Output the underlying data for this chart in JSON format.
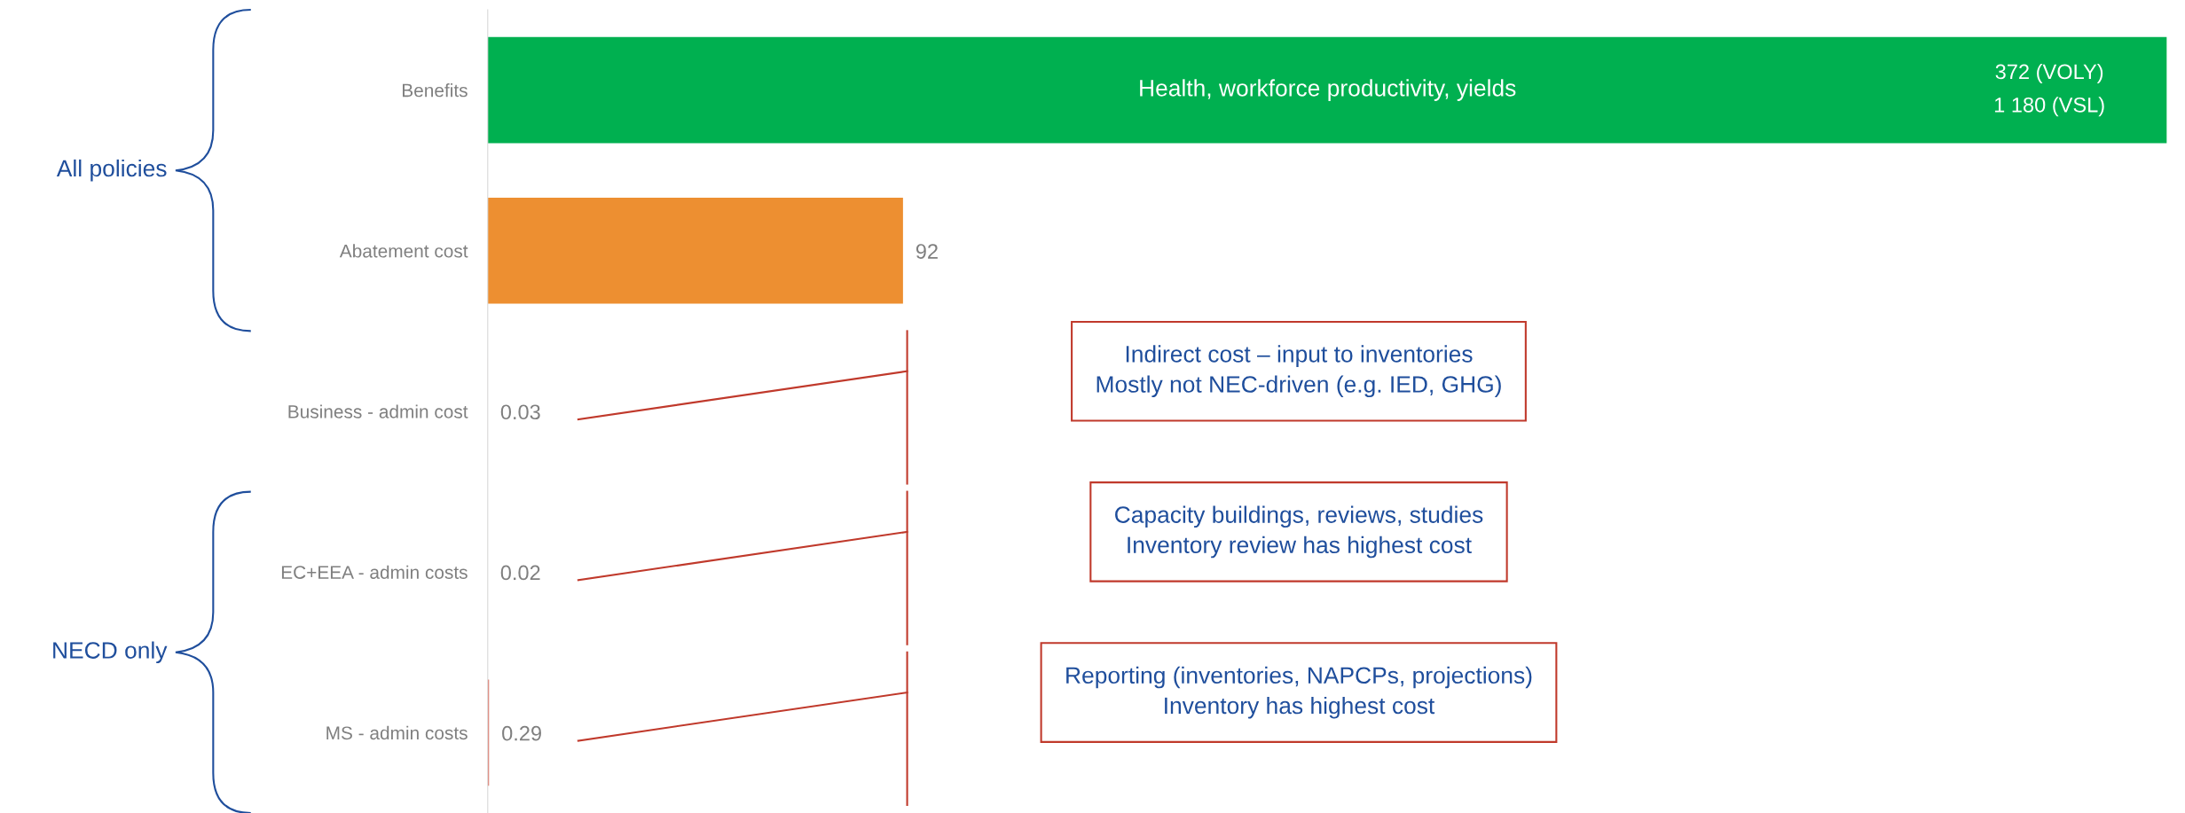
{
  "chart_data": {
    "type": "bar",
    "orientation": "horizontal",
    "categories": [
      "Benefits",
      "Abatement cost",
      "Business - admin cost",
      "EC+EEA - admin costs",
      "MS - admin costs"
    ],
    "values": [
      372,
      92,
      0.03,
      0.02,
      0.29
    ],
    "colors": [
      "#00b050",
      "#ed8f31",
      "#e07060",
      "#e07060",
      "#e07060"
    ],
    "value_labels": [
      "372 (VOLY)\n1 180 (VSL)",
      "92",
      "0.03",
      "0.02",
      "0.29"
    ],
    "xlim": [
      0,
      372
    ],
    "tick_labels": "y",
    "grid": false,
    "legend": false,
    "annotations": [
      "Health, workforce productivity, yields",
      "All policies",
      "NECD only",
      "Indirect cost – input to inventories\nMostly not NEC-driven (e.g. IED, GHG)",
      "Capacity buildings, reviews, studies\nInventory review has highest cost",
      "Reporting (inventories, NAPCPs, projections)\nInventory has highest cost"
    ]
  }
}
